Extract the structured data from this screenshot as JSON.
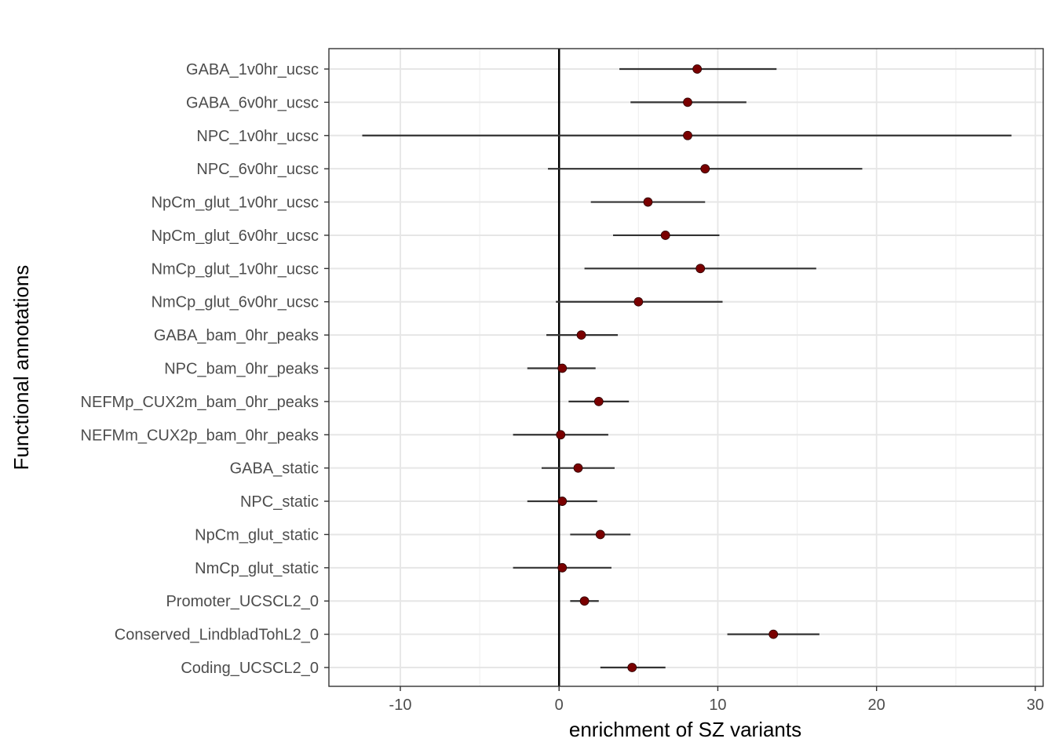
{
  "chart_data": {
    "type": "scatter",
    "subtype": "forest-plot",
    "title": "",
    "xlabel": "enrichment of SZ variants",
    "ylabel": "Functional annotations",
    "xlim": [
      -14.5,
      30.5
    ],
    "xticks": [
      -10,
      0,
      10,
      20,
      30
    ],
    "xtick_labels": [
      "-10",
      "0",
      "10",
      "20",
      "30"
    ],
    "reference_line_x": 0,
    "grid": true,
    "point_color": "#7a0000",
    "errorbar_color": "#333333",
    "categories": [
      "GABA_1v0hr_ucsc",
      "GABA_6v0hr_ucsc",
      "NPC_1v0hr_ucsc",
      "NPC_6v0hr_ucsc",
      "NpCm_glut_1v0hr_ucsc",
      "NpCm_glut_6v0hr_ucsc",
      "NmCp_glut_1v0hr_ucsc",
      "NmCp_glut_6v0hr_ucsc",
      "GABA_bam_0hr_peaks",
      "NPC_bam_0hr_peaks",
      "NEFMp_CUX2m_bam_0hr_peaks",
      "NEFMm_CUX2p_bam_0hr_peaks",
      "GABA_static",
      "NPC_static",
      "NpCm_glut_static",
      "NmCp_glut_static",
      "Promoter_UCSCL2_0",
      "Conserved_LindbladTohL2_0",
      "Coding_UCSCL2_0"
    ],
    "estimate": [
      8.7,
      8.1,
      8.1,
      9.2,
      5.6,
      6.7,
      8.9,
      5.0,
      1.4,
      0.2,
      2.5,
      0.1,
      1.2,
      0.2,
      2.6,
      0.2,
      1.6,
      13.5,
      4.6
    ],
    "lower": [
      3.8,
      4.5,
      -12.4,
      -0.7,
      2.0,
      3.4,
      1.6,
      -0.2,
      -0.8,
      -2.0,
      0.6,
      -2.9,
      -1.1,
      -2.0,
      0.7,
      -2.9,
      0.7,
      10.6,
      2.6
    ],
    "upper": [
      13.7,
      11.8,
      28.5,
      19.1,
      9.2,
      10.1,
      16.2,
      10.3,
      3.7,
      2.3,
      4.4,
      3.1,
      3.5,
      2.4,
      4.5,
      3.3,
      2.5,
      16.4,
      6.7
    ]
  }
}
